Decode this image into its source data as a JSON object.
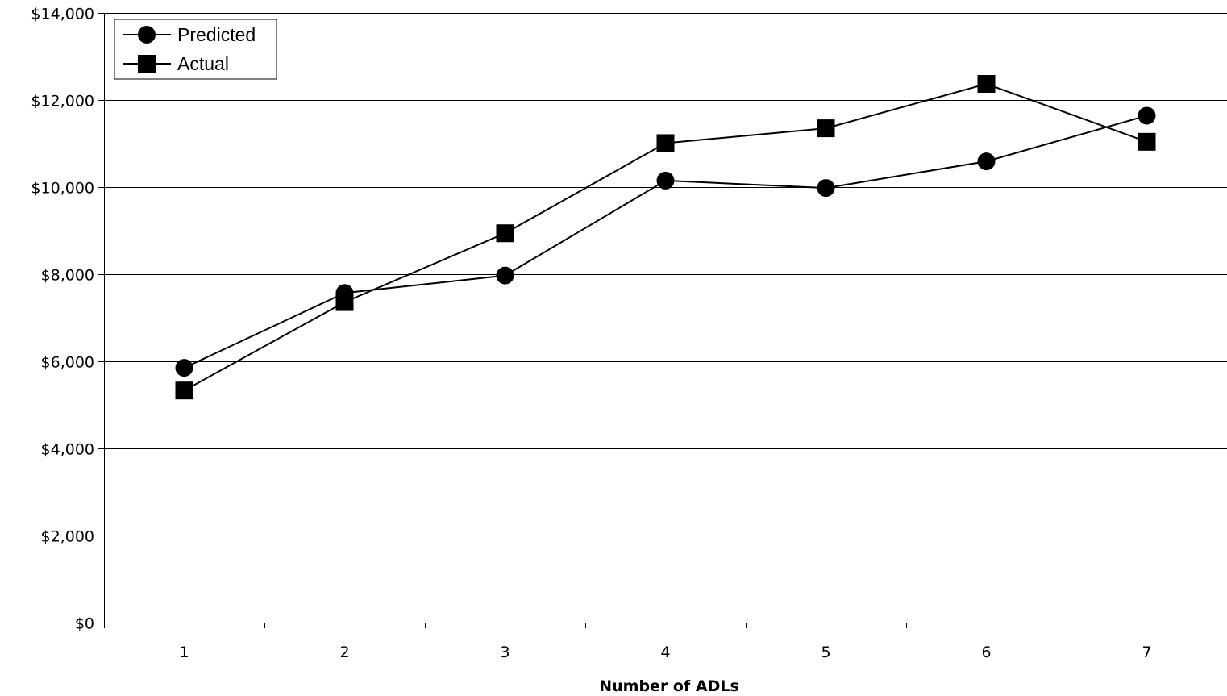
{
  "chart_data": {
    "type": "line",
    "title": "",
    "xlabel": "Number of  ADLs",
    "ylabel": "",
    "categories": [
      "1",
      "2",
      "3",
      "4",
      "5",
      "6",
      "7"
    ],
    "ylim": [
      0,
      14000
    ],
    "yticks": [
      0,
      2000,
      4000,
      6000,
      8000,
      10000,
      12000,
      14000
    ],
    "ytick_labels": [
      "$0",
      "$2,000",
      "$4,000",
      "$6,000",
      "$8,000",
      "$10,000",
      "$12,000",
      "$14,000"
    ],
    "grid": "horizontal major gridlines",
    "legend": "top-left",
    "series": [
      {
        "name": "Predicted",
        "marker": "circle",
        "color": "#000000",
        "values": [
          5850,
          7570,
          7970,
          10150,
          9980,
          10590,
          11640
        ]
      },
      {
        "name": "Actual",
        "marker": "square",
        "color": "#000000",
        "values": [
          5330,
          7360,
          8940,
          11010,
          11350,
          12370,
          11040
        ]
      }
    ]
  }
}
